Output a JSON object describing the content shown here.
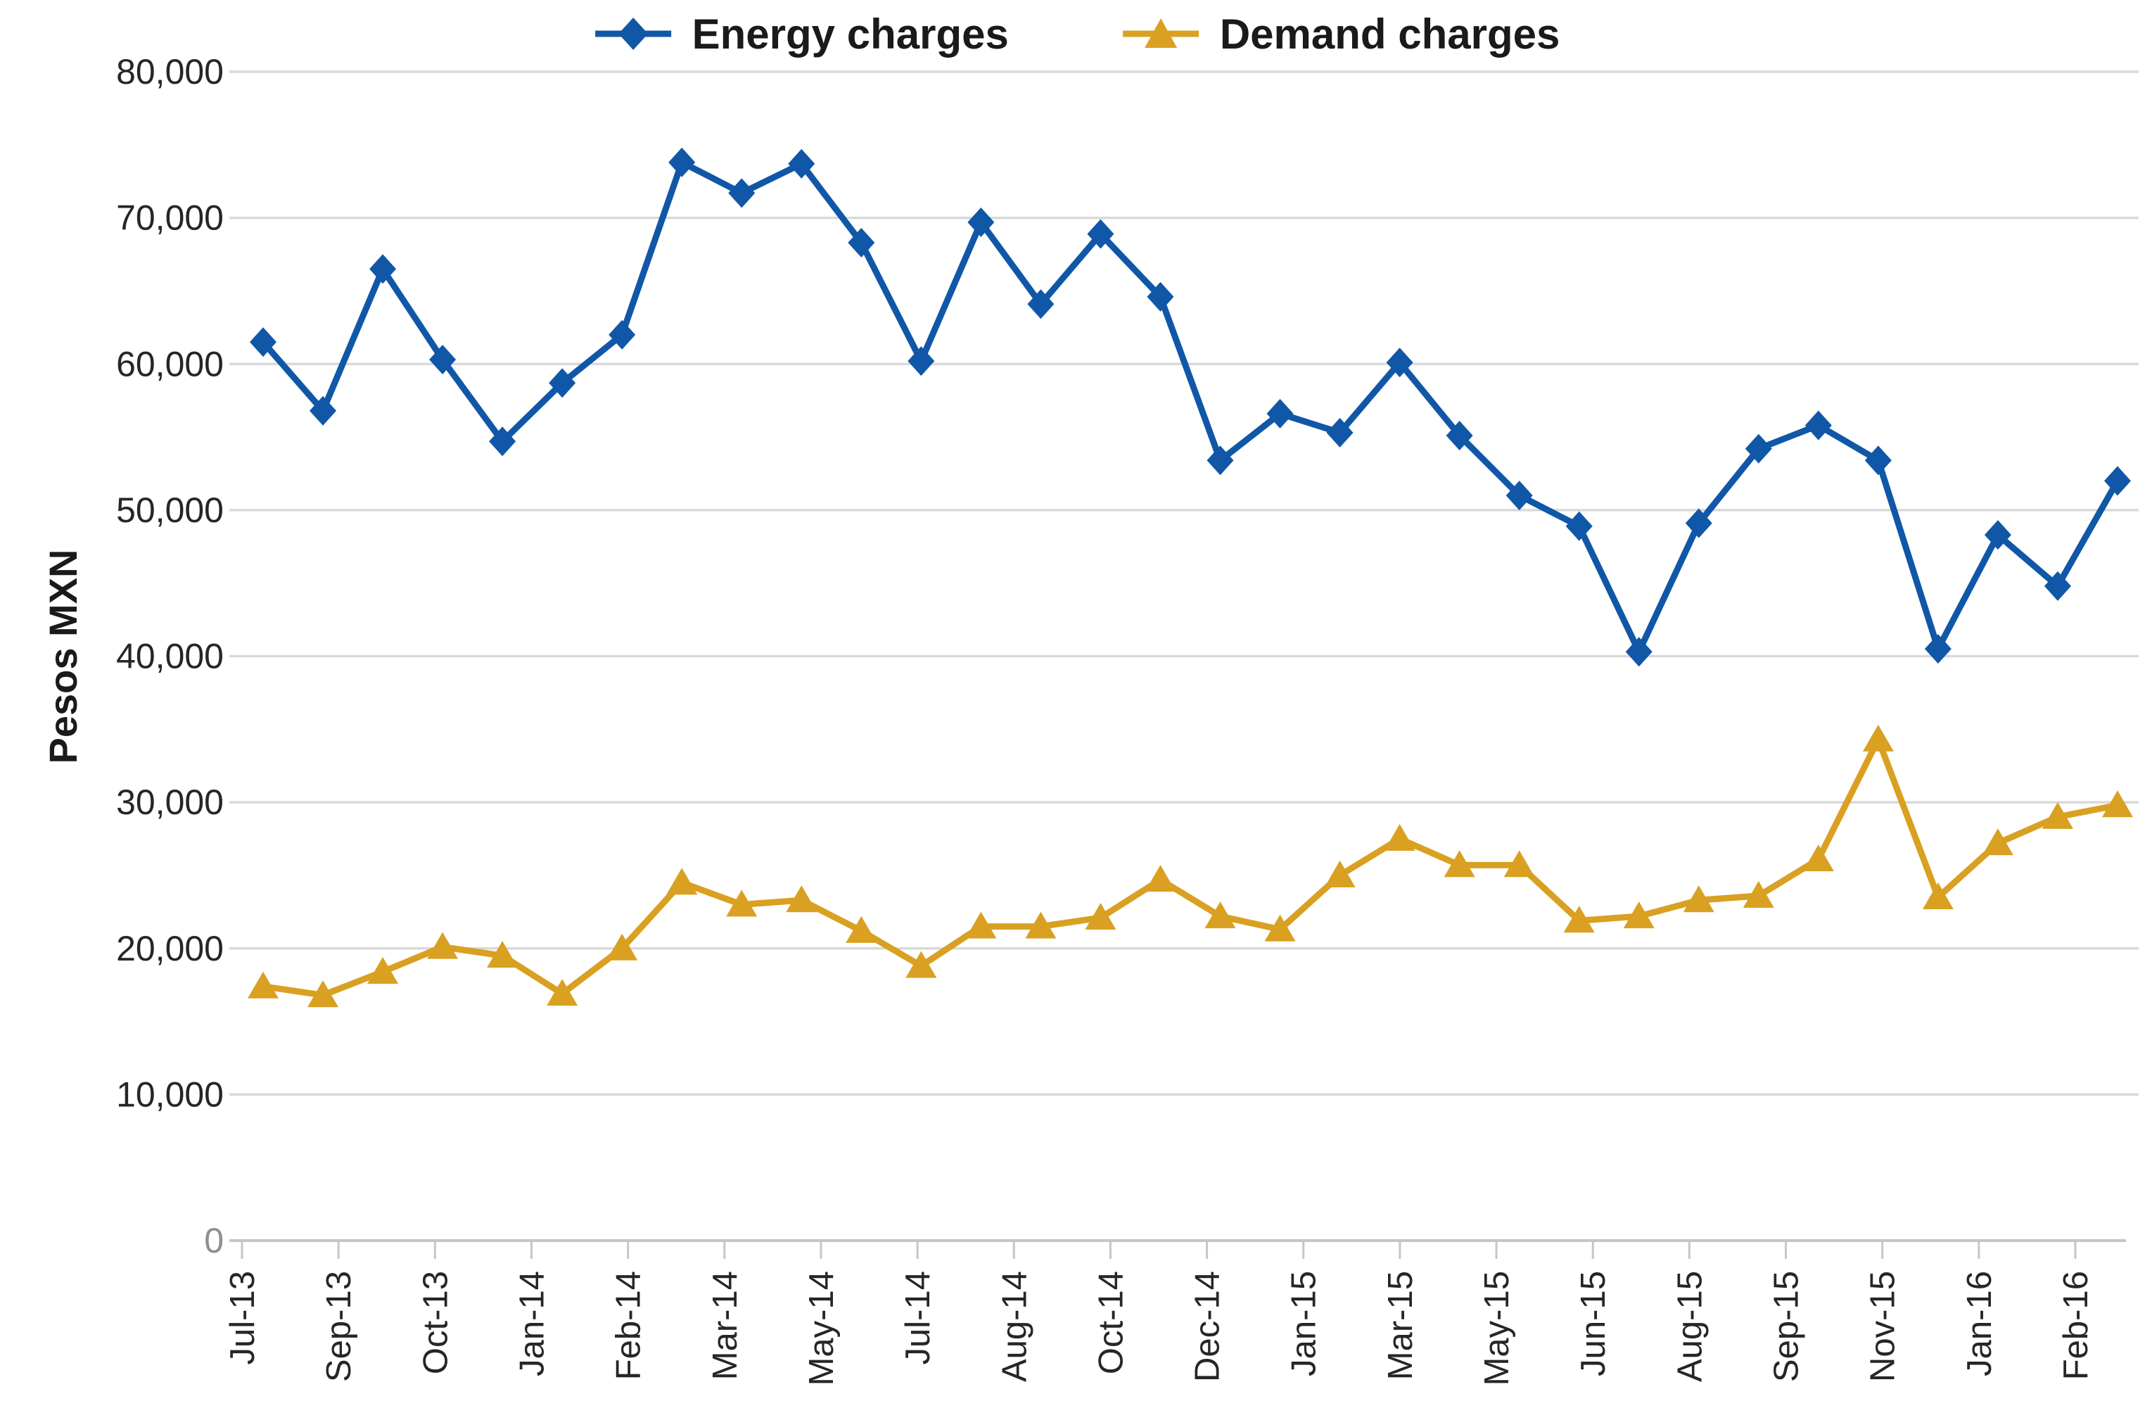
{
  "chart_data": {
    "type": "line",
    "title": "",
    "ylabel": "Pesos MXN",
    "xlabel": "",
    "ylim": [
      0,
      80000
    ],
    "ytick_step": 10000,
    "ytick_labels": [
      "0",
      "10,000",
      "20,000",
      "30,000",
      "40,000",
      "50,000",
      "60,000",
      "70,000",
      "80,000"
    ],
    "grid": "horizontal",
    "legend_position": "top-center",
    "x": [
      "Jul-13",
      "Aug-13",
      "Sep-13",
      "Oct-13",
      "Nov-13",
      "Dec-13",
      "Jan-14",
      "Feb-14",
      "Mar-14",
      "Apr-14",
      "May-14",
      "Jun-14",
      "Jul-14",
      "Aug-14",
      "Sep-14",
      "Oct-14",
      "Nov-14",
      "Dec-14",
      "Jan-15",
      "Feb-15",
      "Mar-15",
      "Apr-15",
      "May-15",
      "Jun-15",
      "Jul-15",
      "Aug-15",
      "Sep-15",
      "Oct-15",
      "Nov-15",
      "Dec-15",
      "Jan-16",
      "Feb-16"
    ],
    "xtick_labels_visible": [
      "Jul-13",
      "Sep-13",
      "Oct-13",
      "Jan-14",
      "Feb-14",
      "Mar-14",
      "May-14",
      "Jul-14",
      "Aug-14",
      "Oct-14",
      "Dec-14",
      "Jan-15",
      "Mar-15",
      "May-15",
      "Jun-15",
      "Aug-15",
      "Sep-15",
      "Nov-15",
      "Jan-16",
      "Feb-16"
    ],
    "series": [
      {
        "name": "Energy charges",
        "color": "#1057A7",
        "marker": "diamond",
        "values": [
          61500,
          56800,
          66500,
          60300,
          54700,
          58700,
          62000,
          73800,
          71700,
          73700,
          68300,
          60200,
          69700,
          64100,
          68900,
          64600,
          53400,
          56600,
          55300,
          60100,
          55100,
          51000,
          48900,
          40300,
          49100,
          54200,
          55800,
          53400,
          40500,
          48300,
          44800,
          52000
        ]
      },
      {
        "name": "Demand charges",
        "color": "#D9A021",
        "marker": "triangle",
        "values": [
          17400,
          16800,
          18400,
          20100,
          19500,
          16900,
          20000,
          24500,
          23000,
          23300,
          21200,
          18800,
          21500,
          21500,
          22100,
          24700,
          22200,
          21300,
          25000,
          27500,
          25700,
          25700,
          21900,
          22200,
          23300,
          23600,
          26100,
          34300,
          23500,
          27200,
          29000,
          29800
        ]
      }
    ],
    "colors": {
      "background": "#FFFFFF",
      "gridline": "#D9D9D9",
      "axis_line": "#C6C6C6",
      "tick_text": "#262626",
      "zero_tick_text": "#8F8F8F"
    }
  }
}
